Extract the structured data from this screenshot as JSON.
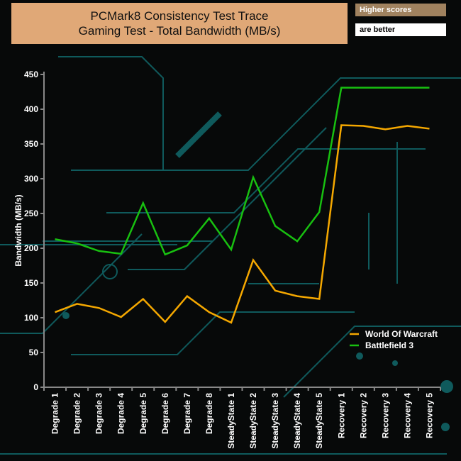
{
  "chart_data": {
    "type": "line",
    "title": "PCMark8 Consistency Test Trace",
    "subtitle": "Gaming Test - Total Bandwidth (MB/s)",
    "note": [
      "Higher scores",
      "are better"
    ],
    "xlabel": "",
    "ylabel": "Bandwidth (MB/s)",
    "ylim": [
      0,
      450
    ],
    "yticks": [
      0,
      50,
      100,
      150,
      200,
      250,
      300,
      350,
      400,
      450
    ],
    "categories": [
      "Degrade 1",
      "Degrade 2",
      "Degrade 3",
      "Degrade 4",
      "Degrade 5",
      "Degrade 6",
      "Degrade 7",
      "Degrade 8",
      "SteadyState 1",
      "SteadyState 2",
      "SteadyState 3",
      "SteadyState 4",
      "SteadyState 5",
      "Recovery 1",
      "Recovery 2",
      "Recovery 3",
      "Recovery 4",
      "Recovery 5"
    ],
    "series": [
      {
        "name": "World Of Warcraft",
        "color": "#f5a800",
        "values": [
          108,
          120,
          114,
          101,
          127,
          94,
          131,
          108,
          93,
          183,
          139,
          131,
          127,
          377,
          376,
          371,
          376,
          372
        ]
      },
      {
        "name": "Battlefield 3",
        "color": "#18c010",
        "values": [
          213,
          207,
          196,
          192,
          265,
          191,
          204,
          243,
          198,
          302,
          232,
          210,
          252,
          431,
          431,
          431,
          431,
          431
        ]
      }
    ],
    "legend": "bottom-right",
    "grid": false
  }
}
